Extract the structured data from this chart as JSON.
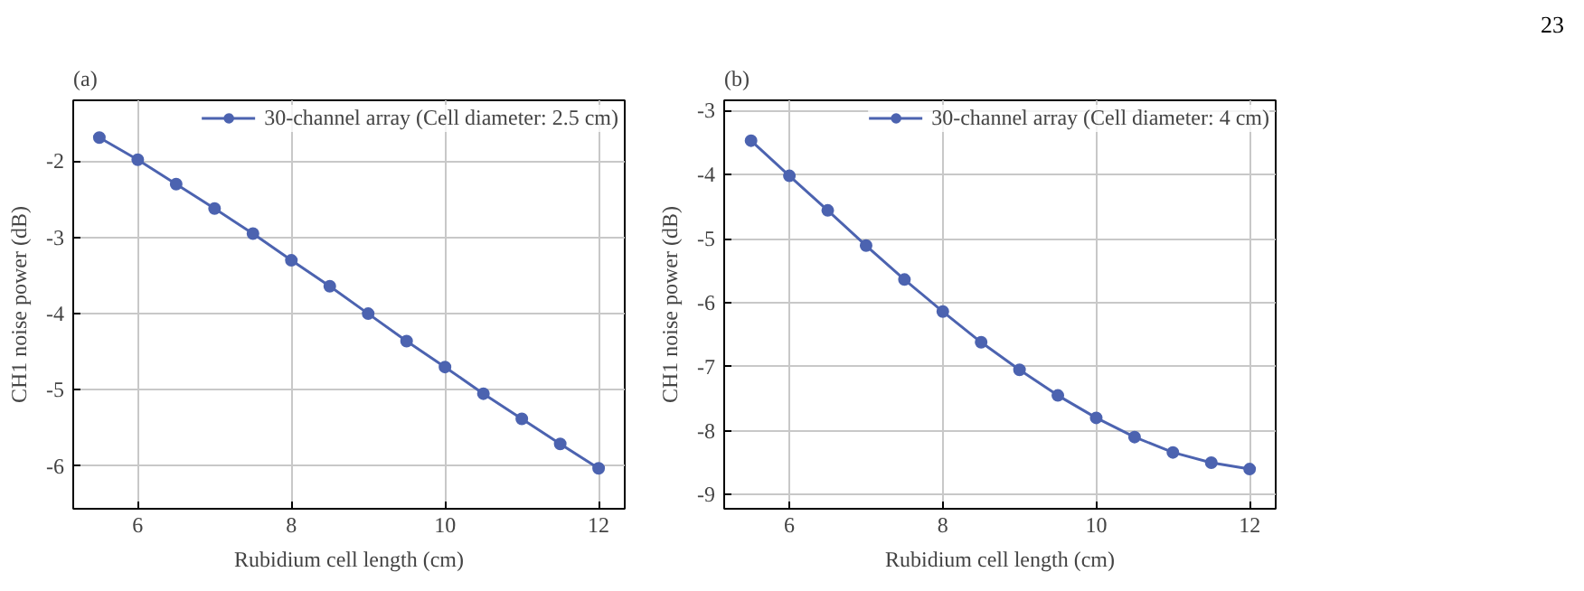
{
  "chart_data": [
    {
      "type": "line",
      "title": "(a)",
      "xlabel": "Rubidium cell length (cm)",
      "ylabel": "CH1 noise power (dB)",
      "annotations": [
        "23"
      ],
      "x": [
        5.5,
        6,
        6.5,
        7,
        7.5,
        8,
        8.5,
        9,
        9.5,
        10,
        10.5,
        11,
        11.5,
        12
      ],
      "series": [
        {
          "name": "30-channel array (Cell diameter: 2.5 cm)",
          "color": "#4c63b0",
          "values": [
            -1.69,
            -1.98,
            -2.3,
            -2.62,
            -2.95,
            -3.3,
            -3.64,
            -4.0,
            -4.36,
            -4.7,
            -5.05,
            -5.38,
            -5.71,
            -6.03
          ]
        }
      ],
      "xlim": [
        5.16,
        12.34
      ],
      "ylim": [
        -6.56,
        -1.2
      ],
      "xticks": [
        6,
        8,
        10,
        12
      ],
      "yticks": [
        -6,
        -5,
        -4,
        -3,
        -2
      ],
      "grid": true,
      "legend": "top right",
      "marker": "circle",
      "line_style": "solid"
    },
    {
      "type": "line",
      "title": "(b)",
      "xlabel": "Rubidium cell length (cm)",
      "ylabel": "CH1 noise power (dB)",
      "x": [
        5.5,
        6,
        6.5,
        7,
        7.5,
        8,
        8.5,
        9,
        9.5,
        10,
        10.5,
        11,
        11.5,
        12
      ],
      "series": [
        {
          "name": "30-channel array (Cell diameter: 4 cm)",
          "color": "#4c63b0",
          "values": [
            -3.47,
            -4.02,
            -4.56,
            -5.11,
            -5.64,
            -6.14,
            -6.62,
            -7.05,
            -7.45,
            -7.8,
            -8.1,
            -8.34,
            -8.5,
            -8.6
          ]
        }
      ],
      "xlim": [
        5.15,
        12.34
      ],
      "ylim": [
        -9.22,
        -2.84
      ],
      "xticks": [
        6,
        8,
        10,
        12
      ],
      "yticks": [
        -9,
        -8,
        -7,
        -6,
        -5,
        -4,
        -3
      ],
      "grid": true,
      "legend": "top right",
      "marker": "circle",
      "line_style": "solid"
    }
  ]
}
